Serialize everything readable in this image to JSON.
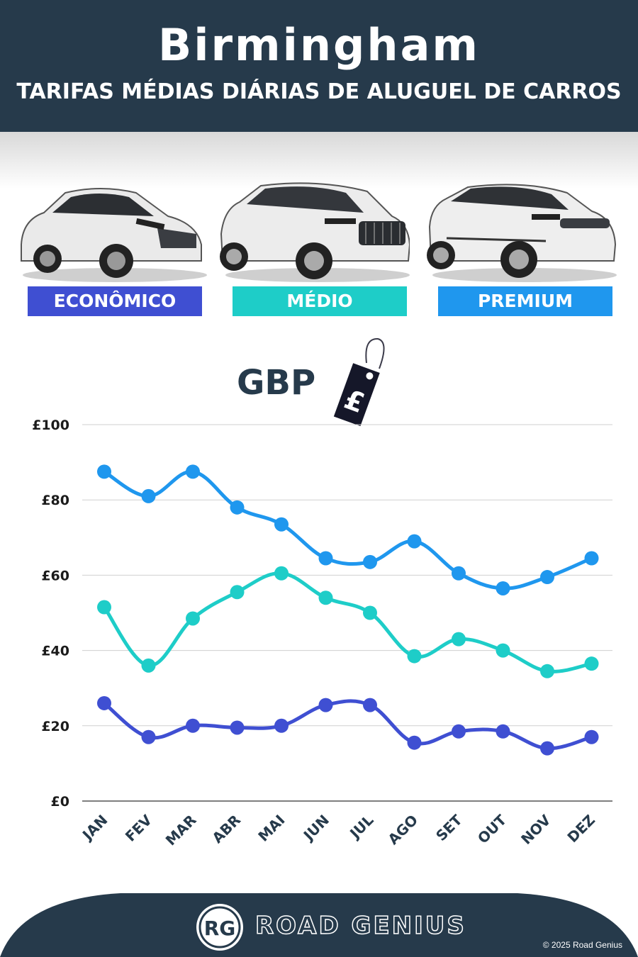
{
  "header": {
    "title": "Birmingham",
    "subtitle": "TARIFAS MÉDIAS DIÁRIAS DE ALUGUEL DE CARROS"
  },
  "categories": [
    {
      "label": "ECONÔMICO",
      "color": "#3f4fd2",
      "icon": "hatchback-car-image"
    },
    {
      "label": "MÉDIO",
      "color": "#1ecdc8",
      "icon": "suv-car-image"
    },
    {
      "label": "PREMIUM",
      "color": "#1f97ee",
      "icon": "premium-suv-car-image"
    }
  ],
  "currency": {
    "label": "GBP",
    "icon": "pound-price-tag-icon",
    "symbol": "£"
  },
  "chart_data": {
    "type": "line",
    "categories": [
      "JAN",
      "FEV",
      "MAR",
      "ABR",
      "MAI",
      "JUN",
      "JUL",
      "AGO",
      "SET",
      "OUT",
      "NOV",
      "DEZ"
    ],
    "series": [
      {
        "name": "PREMIUM",
        "color": "#1f97ee",
        "values": [
          87.5,
          81,
          87.5,
          78,
          73.5,
          64.5,
          63.5,
          69,
          60.5,
          56.5,
          59.5,
          64.5
        ]
      },
      {
        "name": "MÉDIO",
        "color": "#1ecdc8",
        "values": [
          51.5,
          36,
          48.5,
          55.5,
          60.5,
          54,
          50,
          38.5,
          43,
          40,
          34.5,
          36.5
        ]
      },
      {
        "name": "ECONÔMICO",
        "color": "#3f4fd2",
        "values": [
          26,
          17,
          20,
          19.5,
          20,
          25.5,
          25.5,
          15.5,
          18.5,
          18.5,
          14,
          17
        ]
      }
    ],
    "yticks": [
      {
        "value": 0,
        "label": "£0"
      },
      {
        "value": 20,
        "label": "£20"
      },
      {
        "value": 40,
        "label": "£40"
      },
      {
        "value": 60,
        "label": "£60"
      },
      {
        "value": 80,
        "label": "£80"
      },
      {
        "value": 100,
        "label": "£100"
      }
    ],
    "ylim": [
      0,
      100
    ],
    "grid": true
  },
  "footer": {
    "logo_text": "RG",
    "brand": "ROAD GENIUS",
    "copyright": "© 2025 Road Genius",
    "background": "#263a4b"
  }
}
